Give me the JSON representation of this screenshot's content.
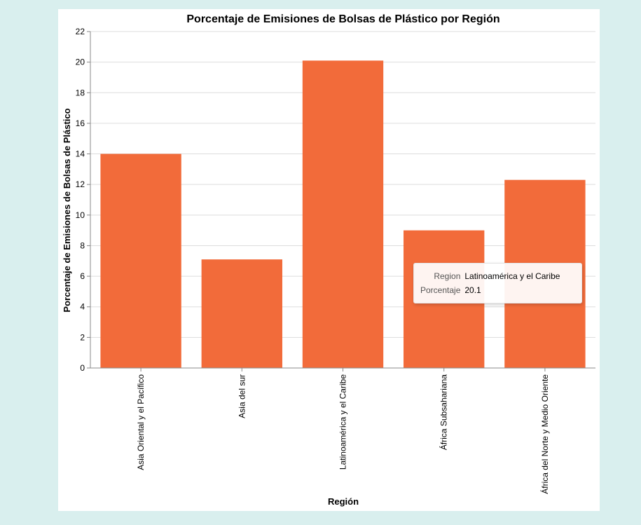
{
  "chart_data": {
    "type": "bar",
    "title": "Porcentaje de Emisiones de Bolsas de Plástico por Región",
    "xlabel": "Región",
    "ylabel": "Porcentaje de Emisiones de Bolsas de Plástico",
    "categories": [
      "Asia Oriental y el Pacífico",
      "Asia del sur",
      "Latinoamérica y el Caribe",
      "África Subsahariana",
      "África del Norte y Medio Oriente"
    ],
    "values": [
      14.0,
      7.1,
      20.1,
      9.0,
      12.3
    ],
    "ylim": [
      0,
      22
    ],
    "yticks": [
      0,
      2,
      4,
      6,
      8,
      10,
      12,
      14,
      16,
      18,
      20,
      22
    ],
    "grid": true,
    "bar_color": "#f26b3a"
  },
  "tooltip": {
    "region_key": "Region",
    "region_value": "Latinoamérica y el Caribe",
    "pct_key": "Porcentaje",
    "pct_value": "20.1"
  },
  "colors": {
    "page_background": "#d9efee",
    "panel_background": "#ffffff",
    "gridline": "#dddddd",
    "axis": "#888888"
  }
}
